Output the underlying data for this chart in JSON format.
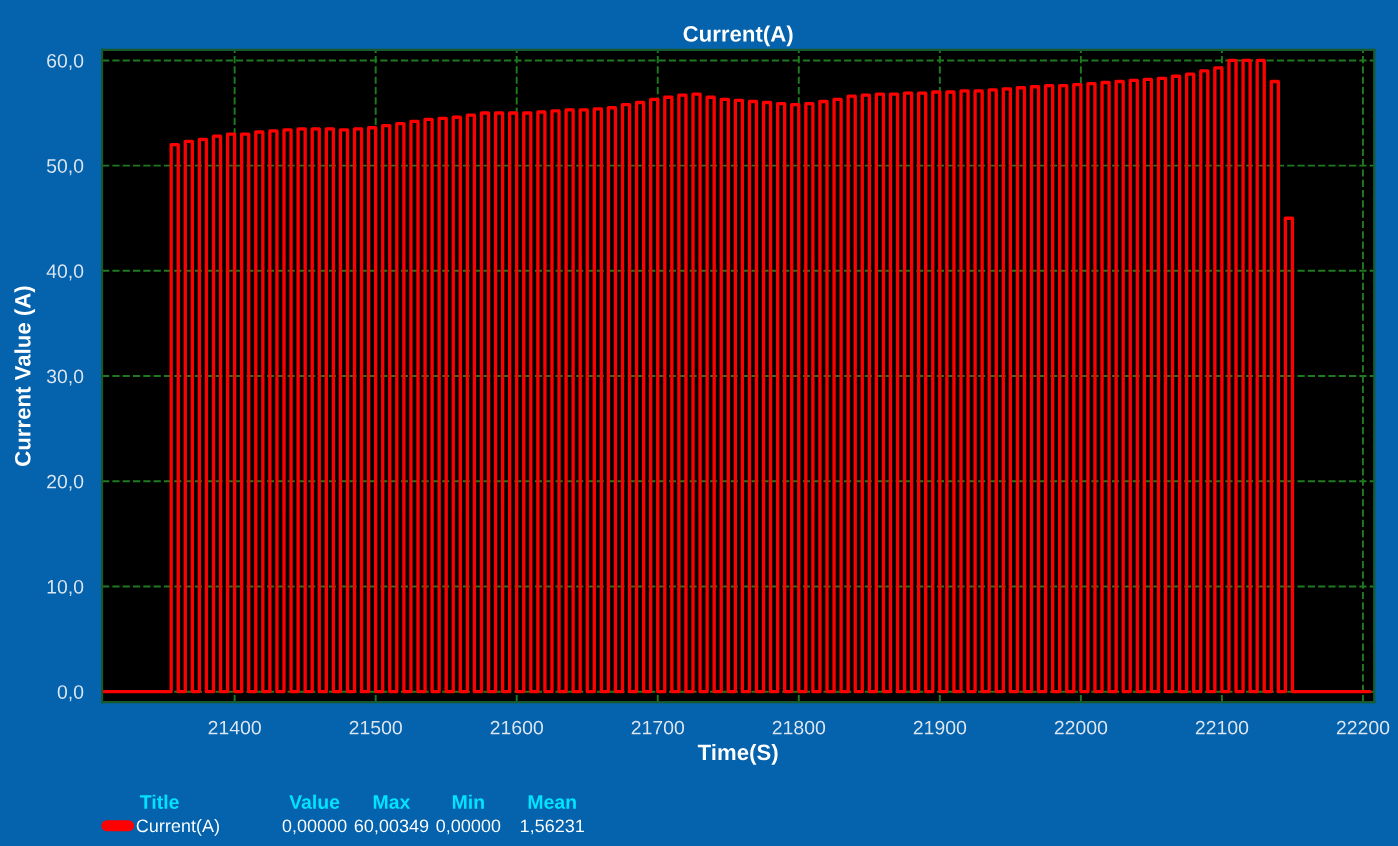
{
  "chart_data": {
    "type": "step",
    "title": "Current(A)",
    "xlabel": "Time(S)",
    "ylabel": "Current Value (A)",
    "x": [
      21306,
      21350,
      21355,
      21360,
      21365,
      21370,
      21375,
      21380,
      21385,
      21390,
      21395,
      21400,
      21405,
      21410,
      21415,
      21420,
      21425,
      21430,
      21435,
      21440,
      21445,
      21450,
      21455,
      21460,
      21465,
      21470,
      21475,
      21480,
      21485,
      21490,
      21495,
      21500,
      21505,
      21510,
      21515,
      21520,
      21525,
      21530,
      21535,
      21540,
      21545,
      21550,
      21555,
      21560,
      21565,
      21570,
      21575,
      21580,
      21585,
      21590,
      21595,
      21600,
      21605,
      21610,
      21615,
      21620,
      21625,
      21630,
      21635,
      21640,
      21645,
      21650,
      21655,
      21660,
      21665,
      21670,
      21675,
      21680,
      21685,
      21690,
      21695,
      21700,
      21705,
      21710,
      21715,
      21720,
      21725,
      21730,
      21735,
      21740,
      21745,
      21750,
      21755,
      21760,
      21765,
      21770,
      21775,
      21780,
      21785,
      21790,
      21795,
      21800,
      21805,
      21810,
      21815,
      21820,
      21825,
      21830,
      21835,
      21840,
      21845,
      21850,
      21855,
      21860,
      21865,
      21870,
      21875,
      21880,
      21885,
      21890,
      21895,
      21900,
      21905,
      21910,
      21915,
      21920,
      21925,
      21930,
      21935,
      21940,
      21945,
      21950,
      21955,
      21960,
      21965,
      21970,
      21975,
      21980,
      21985,
      21990,
      21995,
      22000,
      22005,
      22010,
      22015,
      22020,
      22025,
      22030,
      22035,
      22040,
      22045,
      22050,
      22055,
      22060,
      22065,
      22070,
      22075,
      22080,
      22085,
      22090,
      22095,
      22100,
      22105,
      22110,
      22115,
      22120,
      22125,
      22130,
      22135,
      22140,
      22145,
      22150,
      22205
    ],
    "series": [
      {
        "name": "Current(A)",
        "color": "#ff0000",
        "values": [
          0,
          0,
          52,
          0,
          52.3,
          0,
          52.5,
          0,
          52.8,
          0,
          53,
          0,
          53,
          0,
          53.2,
          0,
          53.3,
          0,
          53.4,
          0,
          53.5,
          0,
          53.5,
          0,
          53.5,
          0,
          53.4,
          0,
          53.5,
          0,
          53.6,
          0,
          53.8,
          0,
          54,
          0,
          54.2,
          0,
          54.4,
          0,
          54.5,
          0,
          54.6,
          0,
          54.8,
          0,
          55,
          0,
          55,
          0,
          55,
          0,
          55,
          0,
          55.1,
          0,
          55.2,
          0,
          55.3,
          0,
          55.3,
          0,
          55.4,
          0,
          55.5,
          0,
          55.8,
          0,
          56,
          0,
          56.3,
          0,
          56.5,
          0,
          56.7,
          0,
          56.8,
          0,
          56.5,
          0,
          56.3,
          0,
          56.2,
          0,
          56.1,
          0,
          56,
          0,
          55.9,
          0,
          55.8,
          0,
          55.9,
          0,
          56.1,
          0,
          56.3,
          0,
          56.6,
          0,
          56.7,
          0,
          56.8,
          0,
          56.8,
          0,
          56.9,
          0,
          56.9,
          0,
          57,
          0,
          57,
          0,
          57.1,
          0,
          57.1,
          0,
          57.2,
          0,
          57.3,
          0,
          57.4,
          0,
          57.5,
          0,
          57.6,
          0,
          57.6,
          0,
          57.7,
          0,
          57.8,
          0,
          57.9,
          0,
          58,
          0,
          58.1,
          0,
          58.2,
          0,
          58.3,
          0,
          58.5,
          0,
          58.7,
          0,
          59,
          0,
          59.3,
          0,
          60,
          0,
          60,
          0,
          60,
          0,
          58,
          0,
          45,
          0,
          0
        ]
      }
    ],
    "xlim": [
      21306,
      22208
    ],
    "ylim": [
      -1,
      61
    ],
    "xticks": [
      21400,
      21500,
      21600,
      21700,
      21800,
      21900,
      22000,
      22100,
      22200
    ],
    "yticks": [
      {
        "value": 0,
        "label": "0,0"
      },
      {
        "value": 10,
        "label": "10,0"
      },
      {
        "value": 20,
        "label": "20,0"
      },
      {
        "value": 30,
        "label": "30,0"
      },
      {
        "value": 40,
        "label": "40,0"
      },
      {
        "value": 50,
        "label": "50,0"
      },
      {
        "value": 60,
        "label": "60,0"
      }
    ],
    "grid": true,
    "legend": "bottom left",
    "line_style": "solid",
    "annotations": [
      "Title",
      "Value",
      "Max",
      "Min",
      "Mean",
      "0,00000",
      "60,00349",
      "0,00000",
      "1,56231"
    ]
  }
}
